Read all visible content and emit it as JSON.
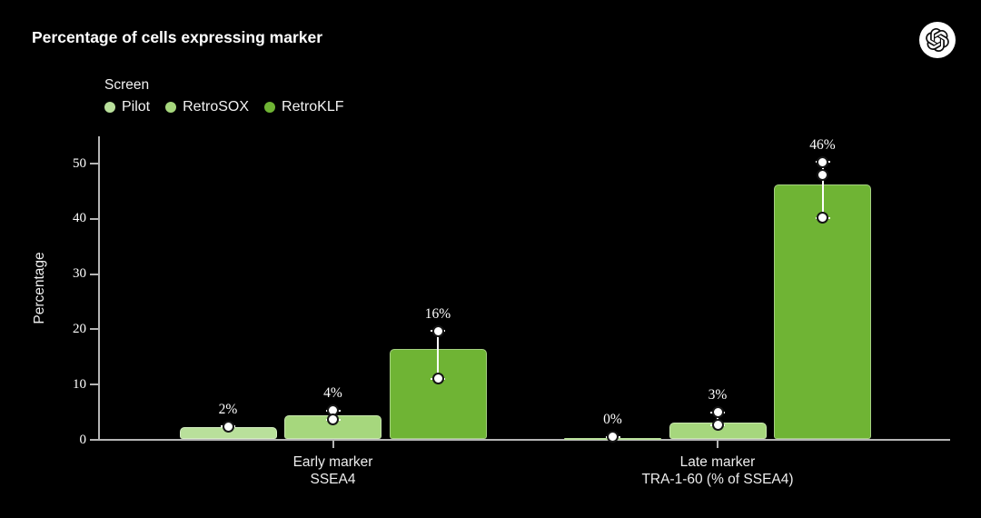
{
  "header": {
    "title": "Percentage of cells expressing marker",
    "logo": "openai-logo"
  },
  "chart_data": {
    "type": "bar",
    "title": "Percentage of cells expressing marker",
    "xlabel": "",
    "ylabel": "Percentage",
    "ylim": [
      0,
      55
    ],
    "yticks": [
      0,
      10,
      20,
      30,
      40,
      50
    ],
    "grid": false,
    "background": "#000000",
    "legend": {
      "title": "Screen",
      "position": "top-left",
      "items": [
        {
          "label": "Pilot",
          "color": "#b9e09b"
        },
        {
          "label": "RetroSOX",
          "color": "#a6d77d"
        },
        {
          "label": "RetroKLF",
          "color": "#6fb434"
        }
      ]
    },
    "groups": [
      {
        "lines": [
          "Early marker",
          "SSEA4"
        ]
      },
      {
        "lines": [
          "Late marker",
          "TRA-1-60 (% of SSEA4)"
        ]
      }
    ],
    "series": [
      {
        "name": "Pilot",
        "color": "#b9e09b",
        "bar_values": [
          2.3,
          0.25
        ],
        "value_labels": [
          "2%",
          "0%"
        ],
        "replicate_points": [
          [
            2.4
          ],
          [
            0.5
          ]
        ]
      },
      {
        "name": "RetroSOX",
        "color": "#a6d77d",
        "bar_values": [
          4.4,
          3.2
        ],
        "value_labels": [
          "4%",
          "3%"
        ],
        "replicate_points": [
          [
            5.3,
            3.7
          ],
          [
            5.0,
            2.7
          ]
        ]
      },
      {
        "name": "RetroKLF",
        "color": "#6fb434",
        "bar_values": [
          16.4,
          46.2
        ],
        "value_labels": [
          "16%",
          "46%"
        ],
        "replicate_points": [
          [
            19.7,
            11.1
          ],
          [
            50.3,
            47.9,
            40.2
          ]
        ]
      }
    ]
  }
}
